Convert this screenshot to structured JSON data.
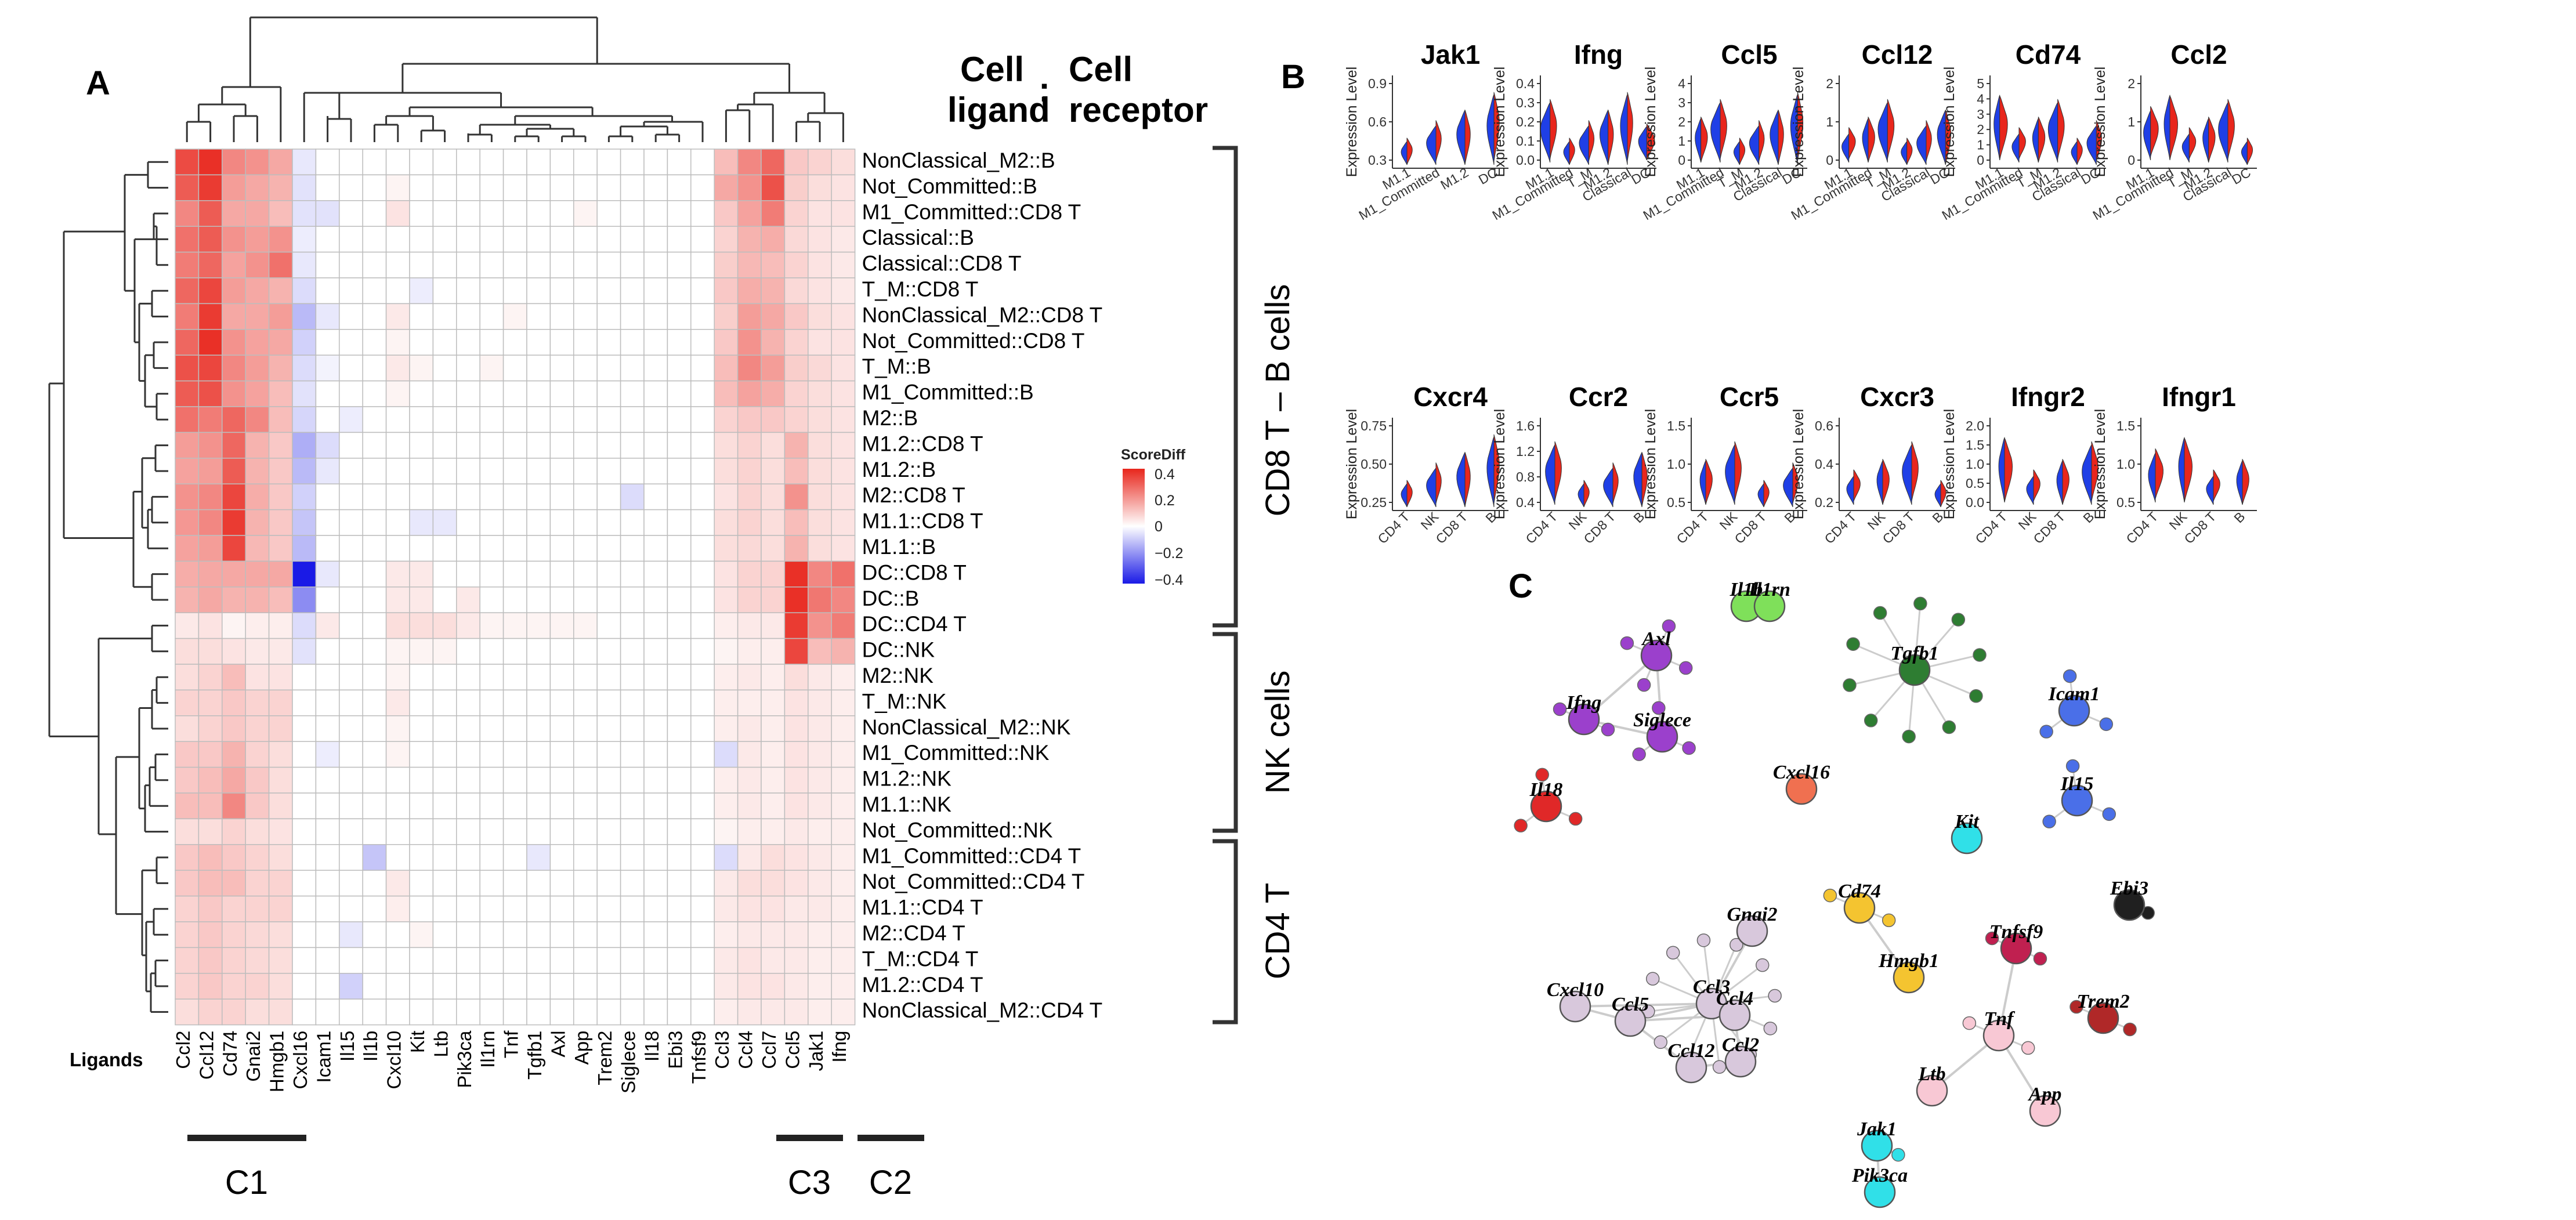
{
  "panels": {
    "a": "A",
    "b": "B",
    "c": "C"
  },
  "heatmap": {
    "rows": [
      "NonClassical_M2::B",
      "Not_Committed::B",
      "M1_Committed::CD8 T",
      "Classical::B",
      "Classical::CD8 T",
      "T_M::CD8 T",
      "NonClassical_M2::CD8 T",
      "Not_Committed::CD8 T",
      "T_M::B",
      "M1_Committed::B",
      "M2::B",
      "M1.2::CD8 T",
      "M1.2::B",
      "M2::CD8 T",
      "M1.1::CD8 T",
      "M1.1::B",
      "DC::CD8 T",
      "DC::B",
      "DC::CD4 T",
      "DC::NK",
      "M2::NK",
      "T_M::NK",
      "NonClassical_M2::NK",
      "M1_Committed::NK",
      "M1.2::NK",
      "M1.1::NK",
      "Not_Committed::NK",
      "M1_Committed::CD4 T",
      "Not_Committed::CD4 T",
      "M1.1::CD4 T",
      "M2::CD4 T",
      "T_M::CD4 T",
      "M1.2::CD4 T",
      "NonClassical_M2::CD4 T"
    ],
    "cols": [
      "Ccl2",
      "Ccl12",
      "Cd74",
      "Gnai2",
      "Hmgb1",
      "Cxcl16",
      "Icam1",
      "Il15",
      "Il1b",
      "Cxcl10",
      "Kit",
      "Ltb",
      "Pik3ca",
      "Il1rn",
      "Tnf",
      "Tgfb1",
      "Axl",
      "App",
      "Trem2",
      "Siglece",
      "Il18",
      "Ebi3",
      "Tnfsf9",
      "Ccl3",
      "Ccl4",
      "Ccl7",
      "Ccl5",
      "Jak1",
      "Ifng"
    ],
    "values": [
      [
        0.33,
        0.38,
        0.22,
        0.2,
        0.16,
        -0.04,
        0,
        0,
        0,
        0,
        0,
        0,
        0,
        0,
        0,
        0,
        0,
        0,
        0,
        0,
        0,
        0,
        0,
        0.12,
        0.22,
        0.28,
        0.1,
        0.08,
        0.06
      ],
      [
        0.3,
        0.36,
        0.18,
        0.16,
        0.14,
        -0.05,
        0,
        0,
        0,
        0.02,
        0,
        0,
        0,
        0,
        0,
        0,
        0,
        0,
        0,
        0,
        0,
        0,
        0,
        0.16,
        0.2,
        0.32,
        0.09,
        0.06,
        0.05
      ],
      [
        0.22,
        0.3,
        0.16,
        0.16,
        0.12,
        -0.05,
        -0.05,
        0,
        0,
        0.05,
        0,
        0,
        0,
        0,
        0,
        0,
        0,
        0.02,
        0,
        0,
        0,
        0,
        0,
        0.1,
        0.17,
        0.24,
        0.08,
        0.05,
        0.05
      ],
      [
        0.26,
        0.3,
        0.2,
        0.18,
        0.2,
        -0.03,
        0,
        0,
        0,
        0,
        0,
        0,
        0,
        0,
        0,
        0,
        0,
        0,
        0,
        0,
        0,
        0,
        0,
        0.08,
        0.14,
        0.15,
        0.07,
        0.05,
        0.04
      ],
      [
        0.24,
        0.28,
        0.17,
        0.2,
        0.26,
        -0.04,
        0,
        0,
        0,
        0,
        0,
        0,
        0,
        0,
        0,
        0,
        0,
        0,
        0,
        0,
        0,
        0,
        0,
        0.09,
        0.13,
        0.12,
        0.08,
        0.05,
        0.04
      ],
      [
        0.28,
        0.34,
        0.18,
        0.16,
        0.14,
        -0.06,
        0,
        0,
        0,
        0,
        -0.03,
        0,
        0,
        0,
        0,
        0,
        0,
        0,
        0,
        0,
        0,
        0,
        0,
        0.1,
        0.15,
        0.14,
        0.07,
        0.05,
        0.04
      ],
      [
        0.24,
        0.36,
        0.16,
        0.16,
        0.18,
        -0.12,
        -0.04,
        0,
        0,
        0.04,
        0,
        0,
        0,
        0,
        0.02,
        0,
        0,
        0,
        0,
        0,
        0,
        0,
        0,
        0.09,
        0.18,
        0.16,
        0.1,
        0.06,
        0.05
      ],
      [
        0.28,
        0.38,
        0.2,
        0.17,
        0.16,
        -0.08,
        0,
        0,
        0,
        0.02,
        0,
        0,
        0,
        0,
        0,
        0,
        0,
        0,
        0,
        0,
        0,
        0,
        0,
        0.1,
        0.2,
        0.14,
        0.08,
        0.05,
        0.05
      ],
      [
        0.32,
        0.34,
        0.22,
        0.18,
        0.14,
        -0.06,
        -0.02,
        0,
        0,
        0.04,
        0.02,
        0,
        0,
        0.02,
        0,
        0,
        0,
        0,
        0,
        0,
        0,
        0,
        0,
        0.12,
        0.22,
        0.18,
        0.09,
        0.07,
        0.05
      ],
      [
        0.3,
        0.32,
        0.2,
        0.17,
        0.12,
        -0.05,
        0,
        0,
        0,
        0.02,
        0,
        0,
        0,
        0,
        0,
        0,
        0,
        0,
        0,
        0,
        0,
        0,
        0,
        0.12,
        0.17,
        0.15,
        0.08,
        0.06,
        0.05
      ],
      [
        0.26,
        0.24,
        0.28,
        0.22,
        0.12,
        -0.07,
        0,
        -0.03,
        0,
        0,
        0,
        0,
        0,
        0,
        0,
        0,
        0,
        0,
        0,
        0,
        0,
        0,
        0,
        0.08,
        0.1,
        0.1,
        0.08,
        0.06,
        0.05
      ],
      [
        0.18,
        0.2,
        0.28,
        0.14,
        0.1,
        -0.14,
        -0.06,
        0,
        0,
        0,
        0,
        0,
        0,
        0,
        0,
        0,
        0,
        0,
        0,
        0,
        0,
        0,
        0,
        0.06,
        0.08,
        0.06,
        0.14,
        0.06,
        0.05
      ],
      [
        0.17,
        0.18,
        0.3,
        0.14,
        0.1,
        -0.12,
        -0.04,
        0,
        0,
        0,
        0,
        0,
        0,
        0,
        0,
        0,
        0,
        0,
        0,
        0,
        0,
        0,
        0,
        0.06,
        0.08,
        0.06,
        0.12,
        0.06,
        0.05
      ],
      [
        0.2,
        0.22,
        0.34,
        0.15,
        0.1,
        -0.08,
        0,
        0,
        0,
        0,
        0,
        0,
        0,
        0,
        0,
        0,
        0,
        0,
        0,
        -0.06,
        0,
        0,
        0,
        0.05,
        0.08,
        0.06,
        0.2,
        0.06,
        0.05
      ],
      [
        0.19,
        0.22,
        0.36,
        0.14,
        0.1,
        -0.1,
        0,
        0,
        0,
        0,
        -0.04,
        -0.04,
        0,
        0,
        0,
        0,
        0,
        0,
        0,
        0,
        0,
        0,
        0,
        0.06,
        0.08,
        0.06,
        0.12,
        0.06,
        0.05
      ],
      [
        0.17,
        0.18,
        0.34,
        0.13,
        0.1,
        -0.12,
        0,
        0,
        0,
        0,
        0,
        0,
        0,
        0,
        0,
        0,
        0,
        0,
        0,
        0,
        0,
        0,
        0,
        0.06,
        0.07,
        0.06,
        0.14,
        0.06,
        0.05
      ],
      [
        0.15,
        0.16,
        0.16,
        0.16,
        0.16,
        -0.4,
        -0.04,
        0,
        0,
        0.04,
        0.04,
        0,
        0,
        0,
        0,
        0,
        0,
        0,
        0,
        0,
        0,
        0,
        0,
        0.05,
        0.08,
        0.08,
        0.38,
        0.22,
        0.26
      ],
      [
        0.14,
        0.16,
        0.14,
        0.14,
        0.12,
        -0.2,
        0,
        0,
        0,
        0.04,
        0.04,
        0,
        0.04,
        0,
        0,
        0,
        0,
        0,
        0,
        0,
        0,
        0,
        0,
        0.05,
        0.08,
        0.08,
        0.38,
        0.25,
        0.22
      ],
      [
        0.04,
        0.05,
        0.02,
        0.03,
        0.03,
        -0.06,
        0.04,
        0,
        0,
        0.06,
        0.06,
        0.06,
        0.04,
        0.02,
        0.02,
        0.02,
        0.02,
        0.02,
        0,
        0,
        0,
        0,
        0,
        0.03,
        0.04,
        0.04,
        0.36,
        0.2,
        0.24
      ],
      [
        0.06,
        0.06,
        0.05,
        0.04,
        0.04,
        -0.05,
        0,
        0,
        0,
        0.02,
        0.02,
        0.02,
        0,
        0,
        0,
        0,
        0,
        0,
        0,
        0,
        0,
        0,
        0,
        0.02,
        0.03,
        0.03,
        0.34,
        0.12,
        0.14
      ],
      [
        0.06,
        0.08,
        0.12,
        0.05,
        0.05,
        0,
        0,
        0,
        0,
        0.02,
        0,
        0,
        0,
        0,
        0,
        0,
        0,
        0,
        0,
        0,
        0,
        0,
        0,
        0.03,
        0.04,
        0.03,
        0.06,
        0.04,
        0.03
      ],
      [
        0.08,
        0.08,
        0.1,
        0.08,
        0.08,
        0,
        0,
        0,
        0,
        0.04,
        0,
        0,
        0,
        0,
        0,
        0,
        0,
        0,
        0,
        0,
        0,
        0,
        0,
        0.03,
        0.03,
        0.03,
        0.05,
        0.04,
        0.03
      ],
      [
        0.06,
        0.08,
        0.1,
        0.08,
        0.08,
        0,
        0,
        0,
        0,
        0.02,
        0,
        0,
        0,
        0,
        0,
        0,
        0,
        0,
        0,
        0,
        0,
        0,
        0,
        0.03,
        0.04,
        0.03,
        0.05,
        0.04,
        0.03
      ],
      [
        0.1,
        0.1,
        0.14,
        0.08,
        0.06,
        0,
        -0.03,
        0,
        0,
        0.02,
        0,
        0,
        0,
        0,
        0,
        0,
        0,
        0,
        0,
        0,
        0,
        0,
        0,
        -0.06,
        0.04,
        0.03,
        0.05,
        0.04,
        0.03
      ],
      [
        0.1,
        0.12,
        0.16,
        0.1,
        0.06,
        0,
        0,
        0,
        0,
        0,
        0,
        0,
        0,
        0,
        0,
        0,
        0,
        0,
        0,
        0,
        0,
        0,
        0,
        0.03,
        0.04,
        0.03,
        0.05,
        0.04,
        0.03
      ],
      [
        0.12,
        0.12,
        0.22,
        0.1,
        0.06,
        0,
        0,
        0,
        0,
        0,
        0,
        0,
        0,
        0,
        0,
        0,
        0,
        0,
        0,
        0,
        0,
        0,
        0,
        0.03,
        0.04,
        0.03,
        0.05,
        0.04,
        0.03
      ],
      [
        0.06,
        0.06,
        0.08,
        0.06,
        0.05,
        0,
        0,
        0,
        0,
        0,
        0,
        0,
        0,
        0,
        0,
        0,
        0,
        0,
        0,
        0,
        0,
        0,
        0,
        0.02,
        0.03,
        0.03,
        0.04,
        0.03,
        0.03
      ],
      [
        0.1,
        0.12,
        0.1,
        0.08,
        0.06,
        0,
        0,
        0,
        -0.1,
        0,
        0,
        0,
        0,
        0,
        0,
        -0.04,
        0,
        0,
        0,
        0,
        0,
        0,
        0,
        -0.06,
        0.04,
        0.06,
        0.05,
        0.04,
        0.03
      ],
      [
        0.1,
        0.12,
        0.12,
        0.08,
        0.08,
        0,
        0,
        0,
        0,
        0.04,
        0,
        0,
        0,
        0,
        0,
        0,
        0,
        0,
        0,
        0,
        0,
        0,
        0,
        0.04,
        0.06,
        0.06,
        0.05,
        0.04,
        0.03
      ],
      [
        0.08,
        0.1,
        0.08,
        0.08,
        0.08,
        0,
        0,
        0,
        0,
        0.03,
        0,
        0,
        0,
        0,
        0,
        0,
        0,
        0,
        0,
        0,
        0,
        0,
        0,
        0.04,
        0.05,
        0.05,
        0.04,
        0.04,
        0.03
      ],
      [
        0.08,
        0.1,
        0.08,
        0.07,
        0.06,
        0,
        0,
        -0.04,
        0,
        0,
        0.02,
        0,
        0,
        0,
        0,
        0,
        0,
        0,
        0,
        0,
        0,
        0,
        0,
        0.03,
        0.04,
        0.04,
        0.04,
        0.03,
        0.03
      ],
      [
        0.08,
        0.1,
        0.08,
        0.07,
        0.06,
        0,
        0,
        0,
        0,
        0,
        0,
        0,
        0,
        0,
        0,
        0,
        0,
        0,
        0,
        0,
        0,
        0,
        0,
        0.04,
        0.05,
        0.04,
        0.04,
        0.03,
        0.03
      ],
      [
        0.08,
        0.1,
        0.08,
        0.08,
        0.06,
        0,
        0,
        -0.08,
        0,
        0,
        0,
        0,
        0,
        0,
        0,
        0,
        0,
        0,
        0,
        0,
        0,
        0,
        0,
        0.04,
        0.05,
        0.05,
        0.04,
        0.03,
        0.03
      ],
      [
        0.06,
        0.08,
        0.08,
        0.06,
        0.06,
        0,
        0,
        0,
        0,
        0,
        0,
        0,
        0,
        0,
        0,
        0,
        0,
        0,
        0,
        0,
        0,
        0,
        0,
        0.03,
        0.04,
        0.04,
        0.04,
        0.03,
        0.03
      ]
    ],
    "legend": {
      "title": "ScoreDiff",
      "ticks": [
        "0.4",
        "0.2",
        "0",
        "−0.2",
        "−0.4"
      ]
    },
    "ligands_label": "Ligands",
    "header_left": [
      "Cell",
      "ligand"
    ],
    "header_sep": ":",
    "header_right": [
      "Cell",
      "receptor"
    ],
    "groups": [
      "CD8 T – B cells",
      "NK cells",
      "CD4 T"
    ],
    "clusters": [
      "C1",
      "C3",
      "C2"
    ]
  },
  "violins": {
    "ylabel": "Expression Level",
    "top": [
      {
        "title": "Jak1",
        "yticks": [
          "0.3",
          "0.6",
          "0.9"
        ],
        "x": [
          "M1.1",
          "M1_Committed",
          "M1.2",
          "DC"
        ]
      },
      {
        "title": "Ifng",
        "yticks": [
          "0.0",
          "0.1",
          "0.2",
          "0.3",
          "0.4"
        ],
        "x": [
          "M1.1",
          "M1_Committed",
          "T_M",
          "M1.2",
          "Classical",
          "DC"
        ]
      },
      {
        "title": "Ccl5",
        "yticks": [
          "0",
          "1",
          "2",
          "3",
          "4"
        ],
        "x": [
          "M1.1",
          "M1_Committed",
          "T_M",
          "M1.2",
          "Classical",
          "DC"
        ]
      },
      {
        "title": "Ccl12",
        "yticks": [
          "0",
          "1",
          "2"
        ],
        "x": [
          "M1.1",
          "M1_Committed",
          "T_M",
          "M1.2",
          "Classical",
          "DC"
        ]
      },
      {
        "title": "Cd74",
        "yticks": [
          "0",
          "1",
          "2",
          "3",
          "4",
          "5"
        ],
        "x": [
          "M1.1",
          "M1_Committed",
          "T_M",
          "M1.2",
          "Classical",
          "DC"
        ]
      },
      {
        "title": "Ccl2",
        "yticks": [
          "0",
          "1",
          "2"
        ],
        "x": [
          "M1.1",
          "M1_Committed",
          "T_M",
          "M1.2",
          "Classical",
          "DC"
        ]
      }
    ],
    "bottom": [
      {
        "title": "Cxcr4",
        "yticks": [
          "0.25",
          "0.50",
          "0.75"
        ],
        "x": [
          "CD4 T",
          "NK",
          "CD8 T",
          "B"
        ]
      },
      {
        "title": "Ccr2",
        "yticks": [
          "0.4",
          "0.8",
          "1.2",
          "1.6"
        ],
        "x": [
          "CD4 T",
          "NK",
          "CD8 T",
          "B"
        ]
      },
      {
        "title": "Ccr5",
        "yticks": [
          "0.5",
          "1.0",
          "1.5"
        ],
        "x": [
          "CD4 T",
          "NK",
          "CD8 T",
          "B"
        ]
      },
      {
        "title": "Cxcr3",
        "yticks": [
          "0.2",
          "0.4",
          "0.6"
        ],
        "x": [
          "CD4 T",
          "NK",
          "CD8 T",
          "B"
        ]
      },
      {
        "title": "Ifngr2",
        "yticks": [
          "0.0",
          "0.5",
          "1.0",
          "1.5",
          "2.0"
        ],
        "x": [
          "CD4 T",
          "NK",
          "CD8 T",
          "B"
        ]
      },
      {
        "title": "Ifngr1",
        "yticks": [
          "0.5",
          "1.0",
          "1.5"
        ],
        "x": [
          "CD4 T",
          "NK",
          "CD8 T",
          "B"
        ]
      }
    ],
    "colors": {
      "left": "#1f3fe6",
      "right": "#e8261c"
    }
  },
  "network": {
    "nodes": [
      {
        "label": "Il1b",
        "color": "#7fe05a"
      },
      {
        "label": "Il1rn",
        "color": "#7fe05a"
      },
      {
        "label": "Axl",
        "color": "#9b40cc"
      },
      {
        "label": "Tgfb1",
        "color": "#2e7d32"
      },
      {
        "label": "Ifng",
        "color": "#9b40cc"
      },
      {
        "label": "Siglece",
        "color": "#9b40cc"
      },
      {
        "label": "Icam1",
        "color": "#4a6fe8"
      },
      {
        "label": "Il15",
        "color": "#4a6fe8"
      },
      {
        "label": "Cxcl16",
        "color": "#f07050"
      },
      {
        "label": "Il18",
        "color": "#e02828"
      },
      {
        "label": "Kit",
        "color": "#30e0e8"
      },
      {
        "label": "Cd74",
        "color": "#f4c430"
      },
      {
        "label": "Gnai2",
        "color": "#d8c8dc"
      },
      {
        "label": "Hmgb1",
        "color": "#f4c430"
      },
      {
        "label": "Tnfsf9",
        "color": "#c02050"
      },
      {
        "label": "Ebi3",
        "color": "#202020"
      },
      {
        "label": "Trem2",
        "color": "#b02828"
      },
      {
        "label": "Ccl3",
        "color": "#d8c8dc"
      },
      {
        "label": "Cxcl10",
        "color": "#d8c8dc"
      },
      {
        "label": "Ccl5",
        "color": "#d8c8dc"
      },
      {
        "label": "Ccl4",
        "color": "#d8c8dc"
      },
      {
        "label": "Ccl2",
        "color": "#d8c8dc"
      },
      {
        "label": "Ccl12",
        "color": "#d8c8dc"
      },
      {
        "label": "Tnf",
        "color": "#f8c8d4"
      },
      {
        "label": "Ltb",
        "color": "#f8c8d4"
      },
      {
        "label": "App",
        "color": "#f8c8d4"
      },
      {
        "label": "Jak1",
        "color": "#30e0e8"
      },
      {
        "label": "Pik3ca",
        "color": "#30e0e8"
      }
    ]
  }
}
